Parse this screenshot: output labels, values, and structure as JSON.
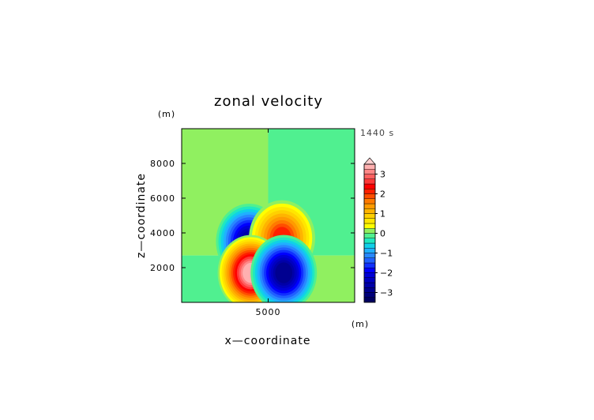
{
  "chart_data": {
    "type": "heatmap",
    "title": "zonal velocity",
    "xlabel": "x—coordinate",
    "ylabel": "z—coordinate",
    "x_unit": "(m)",
    "z_unit": "(m)",
    "time_label": "1440 s",
    "xlim": [
      0,
      10000
    ],
    "zlim": [
      0,
      10000
    ],
    "x_ticks": [
      5000
    ],
    "x_tick_labels": [
      "5000"
    ],
    "z_ticks": [
      2000,
      4000,
      6000,
      8000
    ],
    "z_tick_labels": [
      "2000",
      "4000",
      "6000",
      "8000"
    ],
    "colorbar": {
      "levels": [
        -3.5,
        -3.25,
        -3,
        -2.75,
        -2.5,
        -2.25,
        -2,
        -1.75,
        -1.5,
        -1.25,
        -1,
        -0.75,
        -0.5,
        -0.25,
        0,
        0.25,
        0.5,
        0.75,
        1,
        1.25,
        1.5,
        1.75,
        2,
        2.25,
        2.5,
        2.75,
        3,
        3.25,
        3.5
      ],
      "colors": [
        "#000060",
        "#00007a",
        "#000090",
        "#0000a8",
        "#0000c0",
        "#0000d8",
        "#0000ff",
        "#1030ff",
        "#2060ff",
        "#2888ff",
        "#20b0ff",
        "#10d0e8",
        "#20e8c0",
        "#50f090",
        "#90f060",
        "#ffff00",
        "#ffe600",
        "#ffd000",
        "#ffb400",
        "#ff9a00",
        "#ff7a00",
        "#ff4e00",
        "#ff2000",
        "#ff0000",
        "#ff3838",
        "#ff6060",
        "#ff8888",
        "#ffb0b0"
      ],
      "tick_values": [
        3,
        2,
        1,
        0,
        -1,
        -2,
        -3
      ],
      "tick_labels": [
        "3",
        "2",
        "1",
        "0",
        "−1",
        "−2",
        "−3"
      ],
      "extend_max": true
    },
    "field": {
      "background": [
        {
          "region": "left of x=5000, above z=2700",
          "value": 0.1
        },
        {
          "region": "right of x=5000, above z=2700",
          "value": -0.05
        },
        {
          "region": "left of x=5000, below z=2700",
          "value": -0.1
        },
        {
          "region": "right of x=5000, below z=2700",
          "value": 0.1
        }
      ],
      "extrema": [
        {
          "x": 3900,
          "z": 3500,
          "value": -2.6,
          "label": "upper-left minimum"
        },
        {
          "x": 5800,
          "z": 3700,
          "value": 2.1,
          "label": "upper-right maximum"
        },
        {
          "x": 4000,
          "z": 1700,
          "value": 3.3,
          "label": "lower-left maximum"
        },
        {
          "x": 5900,
          "z": 1700,
          "value": -2.9,
          "label": "lower-right minimum"
        }
      ]
    }
  }
}
